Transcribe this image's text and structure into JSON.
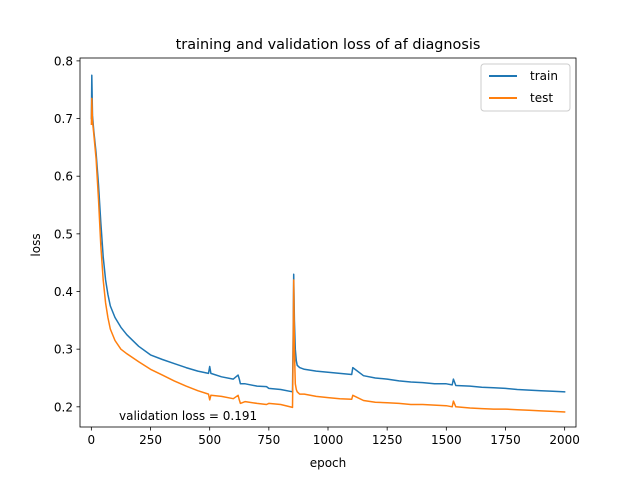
{
  "chart_data": {
    "type": "line",
    "title": "training and validation loss of af diagnosis",
    "xlabel": "epoch",
    "ylabel": "loss",
    "xlim": [
      -48,
      2048
    ],
    "ylim": [
      0.165,
      0.805
    ],
    "xticks": [
      0,
      250,
      500,
      750,
      1000,
      1250,
      1500,
      1750,
      2000
    ],
    "yticks": [
      0.2,
      0.3,
      0.4,
      0.5,
      0.6,
      0.7,
      0.8
    ],
    "xtick_labels": [
      "0",
      "250",
      "500",
      "750",
      "1000",
      "1250",
      "1500",
      "1750",
      "2000"
    ],
    "ytick_labels": [
      "0.2",
      "0.3",
      "0.4",
      "0.5",
      "0.6",
      "0.7",
      "0.8"
    ],
    "grid": false,
    "legend_position": "top-right",
    "annotation": "validation loss = 0.191",
    "series": [
      {
        "name": "train",
        "color": "#1f77b4",
        "x": [
          0,
          2,
          5,
          10,
          20,
          30,
          40,
          50,
          60,
          70,
          80,
          100,
          125,
          150,
          200,
          250,
          300,
          350,
          400,
          450,
          495,
          500,
          505,
          550,
          600,
          620,
          625,
          630,
          650,
          700,
          740,
          750,
          800,
          850,
          852,
          855,
          858,
          862,
          866,
          870,
          880,
          900,
          950,
          1000,
          1050,
          1100,
          1105,
          1150,
          1200,
          1250,
          1300,
          1350,
          1400,
          1450,
          1500,
          1525,
          1530,
          1540,
          1600,
          1650,
          1700,
          1750,
          1800,
          1850,
          1900,
          1950,
          2000
        ],
        "y": [
          0.7,
          0.775,
          0.705,
          0.68,
          0.64,
          0.585,
          0.52,
          0.46,
          0.42,
          0.395,
          0.375,
          0.355,
          0.338,
          0.325,
          0.305,
          0.29,
          0.282,
          0.275,
          0.268,
          0.262,
          0.258,
          0.27,
          0.258,
          0.252,
          0.248,
          0.255,
          0.248,
          0.24,
          0.24,
          0.236,
          0.235,
          0.232,
          0.23,
          0.226,
          0.3,
          0.43,
          0.35,
          0.3,
          0.28,
          0.272,
          0.268,
          0.265,
          0.262,
          0.26,
          0.258,
          0.256,
          0.268,
          0.254,
          0.25,
          0.248,
          0.245,
          0.243,
          0.242,
          0.24,
          0.24,
          0.238,
          0.248,
          0.237,
          0.236,
          0.234,
          0.233,
          0.232,
          0.23,
          0.229,
          0.228,
          0.227,
          0.226
        ]
      },
      {
        "name": "test",
        "color": "#ff7f0e",
        "x": [
          0,
          2,
          5,
          10,
          20,
          30,
          40,
          50,
          60,
          70,
          80,
          100,
          125,
          150,
          200,
          250,
          300,
          350,
          400,
          450,
          495,
          500,
          505,
          550,
          600,
          620,
          625,
          630,
          650,
          700,
          740,
          750,
          800,
          850,
          852,
          855,
          858,
          862,
          866,
          870,
          880,
          900,
          950,
          1000,
          1050,
          1100,
          1105,
          1150,
          1200,
          1250,
          1300,
          1350,
          1400,
          1450,
          1500,
          1525,
          1530,
          1540,
          1600,
          1650,
          1700,
          1750,
          1800,
          1850,
          1900,
          1950,
          2000
        ],
        "y": [
          0.69,
          0.735,
          0.695,
          0.675,
          0.63,
          0.56,
          0.48,
          0.42,
          0.38,
          0.355,
          0.335,
          0.315,
          0.3,
          0.292,
          0.278,
          0.265,
          0.255,
          0.245,
          0.236,
          0.228,
          0.222,
          0.212,
          0.22,
          0.218,
          0.214,
          0.22,
          0.212,
          0.206,
          0.209,
          0.206,
          0.204,
          0.206,
          0.204,
          0.199,
          0.27,
          0.42,
          0.3,
          0.24,
          0.23,
          0.226,
          0.222,
          0.222,
          0.218,
          0.216,
          0.214,
          0.213,
          0.22,
          0.211,
          0.208,
          0.207,
          0.206,
          0.204,
          0.204,
          0.203,
          0.202,
          0.2,
          0.21,
          0.2,
          0.198,
          0.197,
          0.196,
          0.196,
          0.195,
          0.194,
          0.193,
          0.192,
          0.191
        ]
      }
    ]
  }
}
